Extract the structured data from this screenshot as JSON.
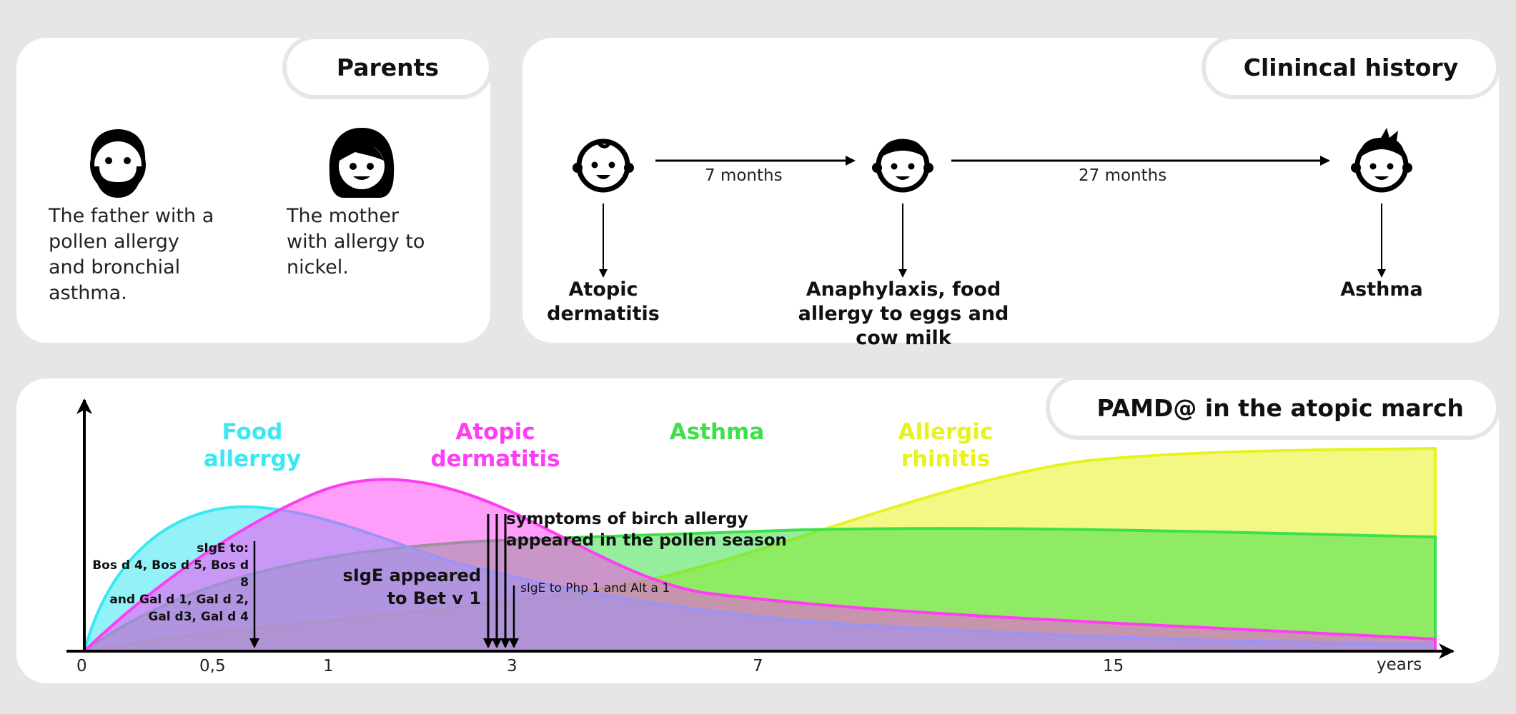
{
  "parents": {
    "title": "Parents",
    "father_desc": "The father with a pollen allergy and bronchial asthma.",
    "mother_desc": "The mother with allergy to nickel.",
    "father_icon": "bearded-man-face-icon",
    "mother_icon": "woman-face-icon"
  },
  "history": {
    "title": "Clinincal history",
    "interval_1": "7 months",
    "interval_2": "27 months",
    "stage_1": "Atopic dermatitis",
    "stage_2": "Anaphylaxis, food allergy to eggs and cow milk",
    "stage_3": "Asthma",
    "icons": [
      "baby-face-icon",
      "toddler-face-icon",
      "child-face-icon"
    ]
  },
  "march": {
    "title": "PAMD@ in the atopic march",
    "curve_labels": {
      "food": "Food allerrgy",
      "atopic": "Atopic dermatitis",
      "asthma": "Asthma",
      "rhinitis": "Allergic rhinitis"
    },
    "annotations": {
      "sige_to_title": "sIgE to:",
      "sige_to_line1": "Bos d 4, Bos d 5, Bos d 8",
      "sige_to_line2": "and Gal d 1, Gal d 2,",
      "sige_to_line3": "Gal d3, Gal d 4",
      "bet_line1": "sIgE appeared",
      "bet_line2": "to Bet v 1",
      "birch_line1": "symptoms of birch allergy",
      "birch_line2": "appeared in the pollen season",
      "php": "sIgE to Php 1 and Alt a 1"
    },
    "x_ticks": [
      "0",
      "0,5",
      "1",
      "3",
      "7",
      "15"
    ],
    "x_unit": "years",
    "colors": {
      "food": "#39e8f2",
      "atopic": "#ff3df5",
      "asthma": "#3ee04a",
      "rhinitis": "#e8f21e"
    }
  }
}
